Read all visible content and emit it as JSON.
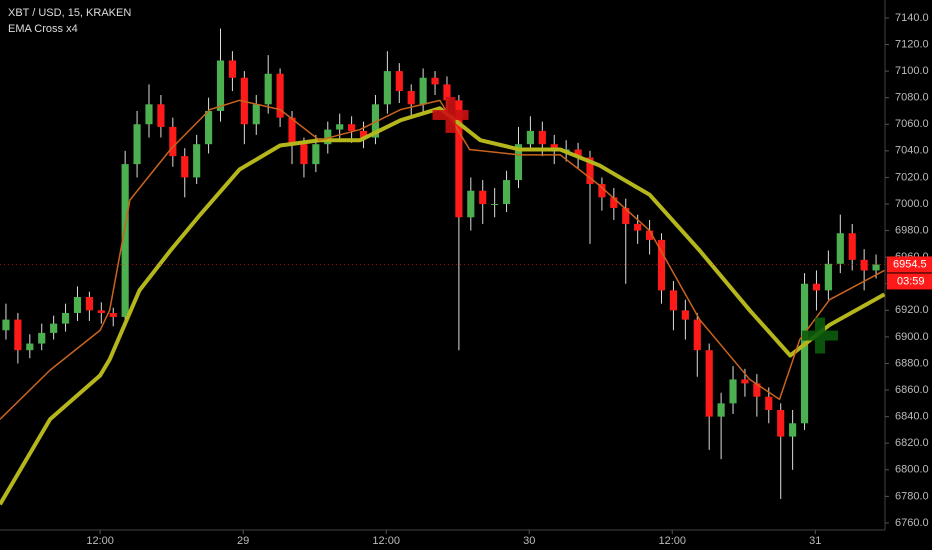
{
  "chart_data": {
    "type": "candlestick",
    "title": "XBT / USD, 15, KRAKEN",
    "subtitle": "EMA Cross x4",
    "x": [
      0.5,
      1.5,
      2.5,
      3.5,
      4.5,
      5.5,
      6.5,
      7.5,
      8.5,
      9.5,
      10.5,
      11.5,
      12.5,
      13.5,
      14.5,
      15.5,
      16.5,
      17.5,
      18.5,
      19.5,
      20.5,
      21.5,
      22.5,
      23.5,
      24.5,
      25.5,
      26.5,
      27.5,
      28.5,
      29.5,
      30.5,
      31.5,
      32.5,
      33.5,
      34.5,
      35.5,
      36.5,
      37.5,
      38.5,
      39.5,
      40.5,
      41.5,
      42.5,
      43.5,
      44.5,
      45.5,
      46.5,
      47.5,
      48.5,
      49.5,
      50.5,
      51.5,
      52.5,
      53.5,
      54.5,
      55.5,
      56.5,
      57.5,
      58.5,
      59.5,
      60.5,
      61.5,
      62.5,
      63.5,
      64.5,
      65.5,
      66.5,
      67.5,
      68.5,
      69.5,
      70.5,
      71.5,
      72.5,
      73.5
    ],
    "open": [
      6905,
      6913,
      6890,
      6895,
      6903,
      6910,
      6918,
      6930,
      6920,
      6918,
      6915,
      7030,
      7060,
      7075,
      7058,
      7036,
      7020,
      7045,
      7070,
      7108,
      7095,
      7060,
      7075,
      7098,
      7065,
      7045,
      7030,
      7045,
      7056,
      7060,
      7055,
      7050,
      7075,
      7100,
      7085,
      7075,
      7095,
      7090,
      7078,
      6990,
      7010,
      7000,
      7000,
      7018,
      7045,
      7055,
      7045,
      7040,
      7041,
      7035,
      7015,
      7005,
      6997,
      6985,
      6980,
      6973,
      6935,
      6920,
      6913,
      6890,
      6840,
      6850,
      6868,
      6865,
      6855,
      6845,
      6825,
      6835,
      6940,
      6935,
      6955,
      6978,
      6958,
      6950
    ],
    "high": [
      6925,
      6918,
      6902,
      6910,
      6916,
      6925,
      6938,
      6934,
      6926,
      6922,
      7040,
      7070,
      7090,
      7082,
      7065,
      7042,
      7052,
      7080,
      7132,
      7115,
      7100,
      7082,
      7112,
      7102,
      7070,
      7050,
      7052,
      7062,
      7068,
      7066,
      7062,
      7082,
      7115,
      7106,
      7090,
      7102,
      7100,
      7096,
      7082,
      7020,
      7018,
      7012,
      7025,
      7058,
      7066,
      7062,
      7052,
      7048,
      7046,
      7040,
      7020,
      7012,
      7004,
      6992,
      6988,
      6978,
      6942,
      6928,
      6918,
      6895,
      6858,
      6878,
      6876,
      6872,
      6862,
      6850,
      6845,
      6948,
      6950,
      6965,
      6992,
      6985,
      6966,
      6962
    ],
    "low": [
      6898,
      6880,
      6884,
      6890,
      6898,
      6904,
      6912,
      6912,
      6910,
      6908,
      6912,
      7020,
      7050,
      7050,
      7028,
      7005,
      7015,
      7038,
      7062,
      7085,
      7045,
      7052,
      7068,
      7058,
      7030,
      7020,
      7024,
      7038,
      7048,
      7046,
      7042,
      7045,
      7068,
      7076,
      7066,
      7068,
      7082,
      7068,
      6890,
      6980,
      6985,
      6990,
      6994,
      7012,
      7040,
      7036,
      7030,
      7032,
      7026,
      6970,
      6995,
      6988,
      6940,
      6970,
      6962,
      6925,
      6905,
      6898,
      6870,
      6815,
      6808,
      6842,
      6855,
      6840,
      6835,
      6778,
      6800,
      6830,
      6920,
      6928,
      6948,
      6950,
      6935,
      6944
    ],
    "close": [
      6913,
      6890,
      6895,
      6903,
      6910,
      6918,
      6930,
      6920,
      6918,
      6915,
      7030,
      7060,
      7075,
      7058,
      7036,
      7020,
      7045,
      7070,
      7108,
      7095,
      7060,
      7075,
      7098,
      7065,
      7045,
      7030,
      7045,
      7056,
      7060,
      7055,
      7050,
      7075,
      7100,
      7085,
      7075,
      7095,
      7090,
      7078,
      6990,
      7010,
      7000,
      7000,
      7018,
      7045,
      7055,
      7045,
      7040,
      7041,
      7035,
      7015,
      7005,
      6997,
      6985,
      6980,
      6973,
      6935,
      6920,
      6913,
      6890,
      6840,
      6850,
      6868,
      6865,
      6855,
      6845,
      6825,
      6835,
      6940,
      6935,
      6955,
      6978,
      6958,
      6950,
      6954.5
    ],
    "up_color": "#4caf50",
    "down_color": "#ff1a1a",
    "series": [
      {
        "color": "#b5b61c",
        "x": [
          0,
          4.2,
          8.4,
          9.2,
          11.7,
          14.3,
          16.8,
          20.1,
          23.5,
          26.8,
          30.2,
          33.6,
          36.9,
          40.3,
          43.6,
          47,
          50.3,
          54.5,
          58.7,
          62.9,
          66.3,
          69.6,
          74.2
        ],
        "values": [
          6774,
          6838,
          6871,
          6883,
          6935,
          6965,
          6992,
          7026,
          7044,
          7048,
          7048,
          7063,
          7072,
          7048,
          7041,
          7041,
          7029,
          7007,
          6965,
          6920,
          6886,
          6909,
          6932
        ]
      },
      {
        "color": "#c8641e",
        "x": [
          0,
          4.2,
          8.4,
          9.2,
          10.9,
          14.3,
          17.6,
          20.1,
          23.5,
          26.8,
          30.2,
          33.6,
          36.9,
          39.4,
          43.6,
          47,
          50.3,
          54.5,
          58.7,
          62.9,
          65.4,
          67.1,
          69.6,
          74.2
        ],
        "values": [
          6838,
          6875,
          6905,
          6920,
          7003,
          7041,
          7071,
          7078,
          7071,
          7048,
          7056,
          7071,
          7078,
          7041,
          7037,
          7037,
          7014,
          6980,
          6913,
          6868,
          6853,
          6898,
          6928,
          6950
        ]
      }
    ],
    "signals": [
      {
        "x": 37.8,
        "y": 7067,
        "color": "#cc1111"
      },
      {
        "x": 68.8,
        "y": 6901,
        "color": "#0d5c0d"
      }
    ],
    "last_price": 6954.5,
    "countdown": "03:59",
    "xlim": [
      0,
      74.25
    ],
    "ylim": [
      6754.7,
      7153.5
    ],
    "xticks": [
      {
        "value": 8.4,
        "label": "12:00"
      },
      {
        "value": 20.4,
        "label": "29"
      },
      {
        "value": 32.4,
        "label": "12:00"
      },
      {
        "value": 44.4,
        "label": "30"
      },
      {
        "value": 56.4,
        "label": "12:00"
      },
      {
        "value": 68.4,
        "label": "31"
      }
    ],
    "yticks": [
      {
        "value": 6760,
        "label": "6760.0"
      },
      {
        "value": 6780,
        "label": "6780.0"
      },
      {
        "value": 6800,
        "label": "6800.0"
      },
      {
        "value": 6820,
        "label": "6820.0"
      },
      {
        "value": 6840,
        "label": "6840.0"
      },
      {
        "value": 6860,
        "label": "6860.0"
      },
      {
        "value": 6880,
        "label": "6880.0"
      },
      {
        "value": 6900,
        "label": "6900.0"
      },
      {
        "value": 6920,
        "label": "6920.0"
      },
      {
        "value": 6940,
        "label": "6940.0"
      },
      {
        "value": 6960,
        "label": "6960.0"
      },
      {
        "value": 6980,
        "label": "6980.0"
      },
      {
        "value": 7000,
        "label": "7000.0"
      },
      {
        "value": 7020,
        "label": "7020.0"
      },
      {
        "value": 7040,
        "label": "7040.0"
      },
      {
        "value": 7060,
        "label": "7060.0"
      },
      {
        "value": 7080,
        "label": "7080.0"
      },
      {
        "value": 7100,
        "label": "7100.0"
      },
      {
        "value": 7120,
        "label": "7120.0"
      },
      {
        "value": 7140,
        "label": "7140.0"
      }
    ]
  }
}
